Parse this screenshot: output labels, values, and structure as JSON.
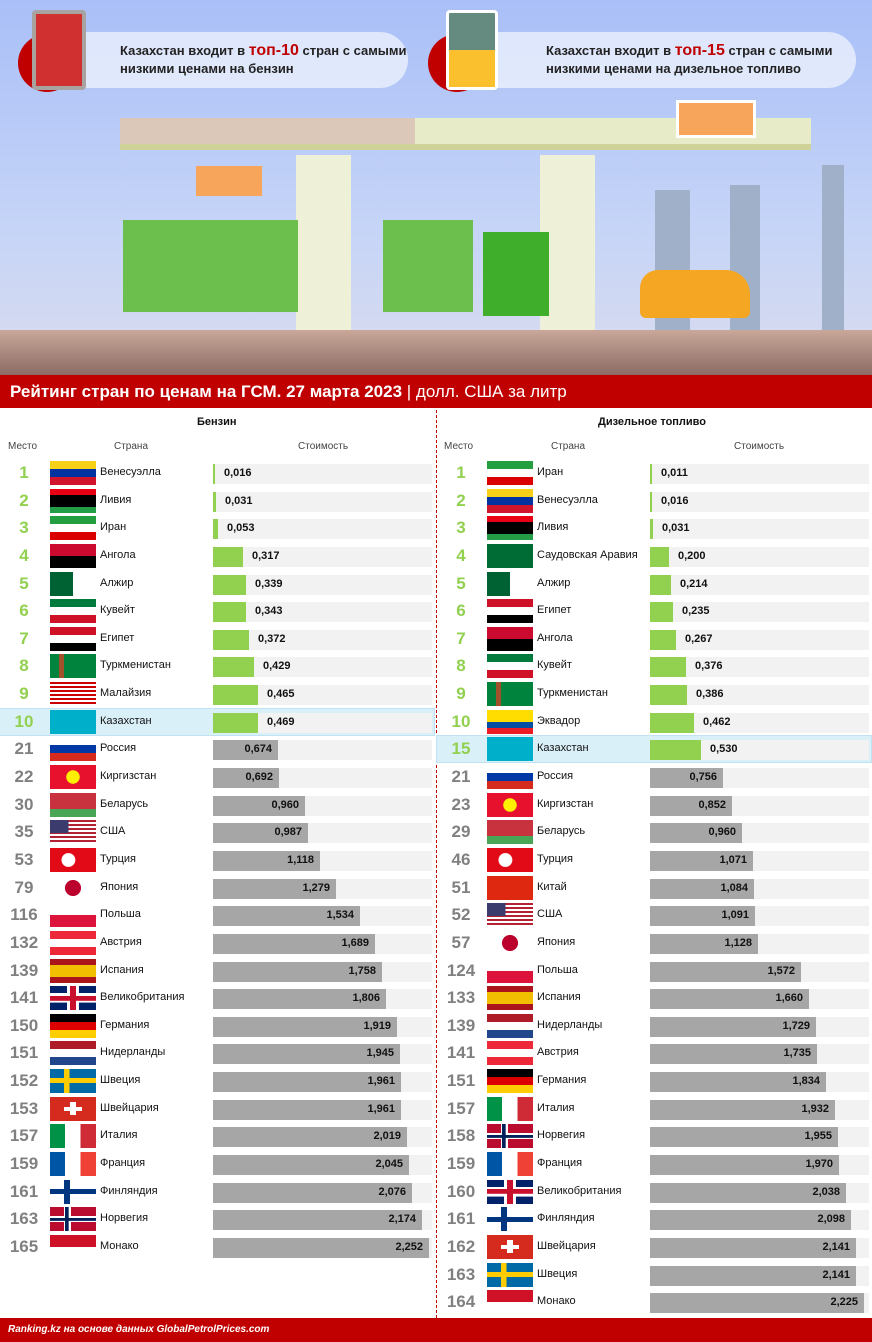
{
  "hero": {
    "callout_left": {
      "pre": "Казахстан входит в ",
      "highlight": "топ-10",
      "post": " стран с самыми низкими ценами на бензин"
    },
    "callout_right": {
      "pre": "Казахстан входит в ",
      "highlight": "топ-15",
      "post": " стран с самыми низкими ценами на дизельное топливо"
    }
  },
  "banner": {
    "title": "Рейтинг стран по ценам на ГСМ. 27 марта 2023",
    "sep": " | ",
    "unit": "долл. США за литр"
  },
  "columns": {
    "rank": "Место",
    "country": "Страна",
    "cost": "Стоимость"
  },
  "colors": {
    "green": "#92d050",
    "gray": "#a6a6a6",
    "red": "#c00000",
    "highlight": "#daf0f9"
  },
  "gasoline": {
    "title": "Бензин",
    "rows": [
      {
        "rank": "1",
        "country": "Венесуэлла",
        "value": "0,016",
        "flag": "ve",
        "top": true
      },
      {
        "rank": "2",
        "country": "Ливия",
        "value": "0,031",
        "flag": "ly",
        "top": true
      },
      {
        "rank": "3",
        "country": "Иран",
        "value": "0,053",
        "flag": "ir",
        "top": true
      },
      {
        "rank": "4",
        "country": "Ангола",
        "value": "0,317",
        "flag": "ao",
        "top": true
      },
      {
        "rank": "5",
        "country": "Алжир",
        "value": "0,339",
        "flag": "dz",
        "top": true
      },
      {
        "rank": "6",
        "country": "Кувейт",
        "value": "0,343",
        "flag": "kw",
        "top": true
      },
      {
        "rank": "7",
        "country": "Египет",
        "value": "0,372",
        "flag": "eg",
        "top": true
      },
      {
        "rank": "8",
        "country": "Туркменистан",
        "value": "0,429",
        "flag": "tm",
        "top": true
      },
      {
        "rank": "9",
        "country": "Малайзия",
        "value": "0,465",
        "flag": "my",
        "top": true
      },
      {
        "rank": "10",
        "country": "Казахстан",
        "value": "0,469",
        "flag": "kz",
        "top": true,
        "highlight": true
      },
      {
        "rank": "21",
        "country": "Россия",
        "value": "0,674",
        "flag": "ru"
      },
      {
        "rank": "22",
        "country": "Киргизстан",
        "value": "0,692",
        "flag": "kg"
      },
      {
        "rank": "30",
        "country": "Беларусь",
        "value": "0,960",
        "flag": "by"
      },
      {
        "rank": "35",
        "country": "США",
        "value": "0,987",
        "flag": "us"
      },
      {
        "rank": "53",
        "country": "Турция",
        "value": "1,118",
        "flag": "tr"
      },
      {
        "rank": "79",
        "country": "Япония",
        "value": "1,279",
        "flag": "jp"
      },
      {
        "rank": "116",
        "country": "Польша",
        "value": "1,534",
        "flag": "pl"
      },
      {
        "rank": "132",
        "country": "Австрия",
        "value": "1,689",
        "flag": "at"
      },
      {
        "rank": "139",
        "country": "Испания",
        "value": "1,758",
        "flag": "es"
      },
      {
        "rank": "141",
        "country": "Великобритания",
        "value": "1,806",
        "flag": "gb"
      },
      {
        "rank": "150",
        "country": "Германия",
        "value": "1,919",
        "flag": "de"
      },
      {
        "rank": "151",
        "country": "Нидерланды",
        "value": "1,945",
        "flag": "nl"
      },
      {
        "rank": "152",
        "country": "Швеция",
        "value": "1,961",
        "flag": "se"
      },
      {
        "rank": "153",
        "country": "Швейцария",
        "value": "1,961",
        "flag": "ch"
      },
      {
        "rank": "157",
        "country": "Италия",
        "value": "2,019",
        "flag": "it"
      },
      {
        "rank": "159",
        "country": "Франция",
        "value": "2,045",
        "flag": "fr"
      },
      {
        "rank": "161",
        "country": "Финляндия",
        "value": "2,076",
        "flag": "fi"
      },
      {
        "rank": "163",
        "country": "Норвегия",
        "value": "2,174",
        "flag": "no"
      },
      {
        "rank": "165",
        "country": "Монако",
        "value": "2,252",
        "flag": "mc"
      }
    ]
  },
  "diesel": {
    "title": "Дизельное топливо",
    "rows": [
      {
        "rank": "1",
        "country": "Иран",
        "value": "0,011",
        "flag": "ir",
        "top": true
      },
      {
        "rank": "2",
        "country": "Венесуэлла",
        "value": "0,016",
        "flag": "ve",
        "top": true
      },
      {
        "rank": "3",
        "country": "Ливия",
        "value": "0,031",
        "flag": "ly",
        "top": true
      },
      {
        "rank": "4",
        "country": "Саудовская Аравия",
        "value": "0,200",
        "flag": "sa",
        "top": true
      },
      {
        "rank": "5",
        "country": "Алжир",
        "value": "0,214",
        "flag": "dz",
        "top": true
      },
      {
        "rank": "6",
        "country": "Египет",
        "value": "0,235",
        "flag": "eg",
        "top": true
      },
      {
        "rank": "7",
        "country": "Ангола",
        "value": "0,267",
        "flag": "ao",
        "top": true
      },
      {
        "rank": "8",
        "country": "Кувейт",
        "value": "0,376",
        "flag": "kw",
        "top": true
      },
      {
        "rank": "9",
        "country": "Туркменистан",
        "value": "0,386",
        "flag": "tm",
        "top": true
      },
      {
        "rank": "10",
        "country": "Эквадор",
        "value": "0,462",
        "flag": "ec",
        "top": true
      },
      {
        "rank": "15",
        "country": "Казахстан",
        "value": "0,530",
        "flag": "kz",
        "top": true,
        "highlight": true
      },
      {
        "rank": "21",
        "country": "Россия",
        "value": "0,756",
        "flag": "ru"
      },
      {
        "rank": "23",
        "country": "Киргизстан",
        "value": "0,852",
        "flag": "kg"
      },
      {
        "rank": "29",
        "country": "Беларусь",
        "value": "0,960",
        "flag": "by"
      },
      {
        "rank": "46",
        "country": "Турция",
        "value": "1,071",
        "flag": "tr"
      },
      {
        "rank": "51",
        "country": "Китай",
        "value": "1,084",
        "flag": "cn"
      },
      {
        "rank": "52",
        "country": "США",
        "value": "1,091",
        "flag": "us"
      },
      {
        "rank": "57",
        "country": "Япония",
        "value": "1,128",
        "flag": "jp"
      },
      {
        "rank": "124",
        "country": "Польша",
        "value": "1,572",
        "flag": "pl"
      },
      {
        "rank": "133",
        "country": "Испания",
        "value": "1,660",
        "flag": "es"
      },
      {
        "rank": "139",
        "country": "Нидерланды",
        "value": "1,729",
        "flag": "nl"
      },
      {
        "rank": "141",
        "country": "Австрия",
        "value": "1,735",
        "flag": "at"
      },
      {
        "rank": "151",
        "country": "Германия",
        "value": "1,834",
        "flag": "de"
      },
      {
        "rank": "157",
        "country": "Италия",
        "value": "1,932",
        "flag": "it"
      },
      {
        "rank": "158",
        "country": "Норвегия",
        "value": "1,955",
        "flag": "no"
      },
      {
        "rank": "159",
        "country": "Франция",
        "value": "1,970",
        "flag": "fr"
      },
      {
        "rank": "160",
        "country": "Великобритания",
        "value": "2,038",
        "flag": "gb"
      },
      {
        "rank": "161",
        "country": "Финляндия",
        "value": "2,098",
        "flag": "fi"
      },
      {
        "rank": "162",
        "country": "Швейцария",
        "value": "2,141",
        "flag": "ch"
      },
      {
        "rank": "163",
        "country": "Швеция",
        "value": "2,141",
        "flag": "se"
      },
      {
        "rank": "164",
        "country": "Монако",
        "value": "2,225",
        "flag": "mc"
      }
    ]
  },
  "footer": "Ranking.kz на основе данных GlobalPetrolPrices.com"
}
